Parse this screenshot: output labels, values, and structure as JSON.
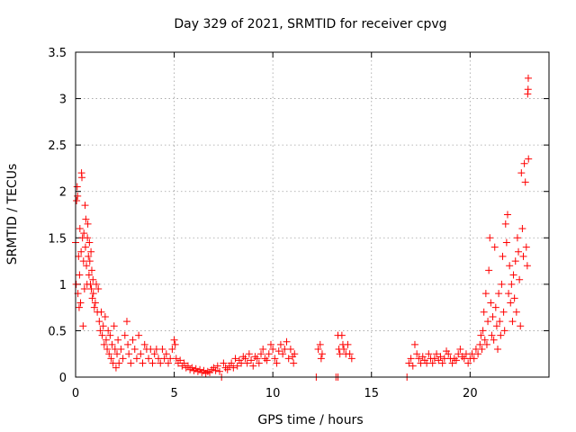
{
  "chart_data": {
    "type": "scatter",
    "title": "Day 329 of 2021, SRMTID for receiver cpvg",
    "xlabel": "GPS time / hours",
    "ylabel": "SRMTID / TECUs",
    "xlim": [
      0,
      24
    ],
    "ylim": [
      0,
      3.5
    ],
    "xticks": [
      0,
      5,
      10,
      15,
      20
    ],
    "xtick_labels": [
      "0",
      "5",
      "10",
      "15",
      "20"
    ],
    "yticks": [
      0,
      0.5,
      1,
      1.5,
      2,
      2.5,
      3,
      3.5
    ],
    "ytick_labels": [
      "0",
      "0.5",
      "1",
      "1.5",
      "2",
      "2.5",
      "3",
      "3.5"
    ],
    "grid": true,
    "marker": "+",
    "color": "#ff0000",
    "series": [
      {
        "name": "SRMTID",
        "points": [
          [
            0.0,
            1.45
          ],
          [
            0.03,
            1.0
          ],
          [
            0.05,
            1.9
          ],
          [
            0.08,
            2.05
          ],
          [
            0.1,
            1.95
          ],
          [
            0.12,
            0.9
          ],
          [
            0.15,
            1.3
          ],
          [
            0.18,
            0.75
          ],
          [
            0.2,
            1.1
          ],
          [
            0.22,
            1.6
          ],
          [
            0.25,
            0.8
          ],
          [
            0.28,
            1.35
          ],
          [
            0.3,
            2.2
          ],
          [
            0.32,
            2.15
          ],
          [
            0.35,
            1.5
          ],
          [
            0.38,
            0.55
          ],
          [
            0.4,
            1.25
          ],
          [
            0.42,
            1.55
          ],
          [
            0.45,
            0.95
          ],
          [
            0.48,
            1.85
          ],
          [
            0.5,
            1.4
          ],
          [
            0.52,
            1.7
          ],
          [
            0.55,
            1.2
          ],
          [
            0.58,
            1.0
          ],
          [
            0.6,
            1.5
          ],
          [
            0.62,
            1.65
          ],
          [
            0.65,
            1.3
          ],
          [
            0.68,
            1.1
          ],
          [
            0.7,
            1.45
          ],
          [
            0.72,
            1.25
          ],
          [
            0.75,
            1.0
          ],
          [
            0.78,
            1.35
          ],
          [
            0.8,
            0.95
          ],
          [
            0.82,
            1.15
          ],
          [
            0.85,
            0.85
          ],
          [
            0.88,
            1.05
          ],
          [
            0.9,
            0.9
          ],
          [
            0.95,
            0.75
          ],
          [
            1.0,
            0.8
          ],
          [
            1.05,
            1.0
          ],
          [
            1.1,
            0.7
          ],
          [
            1.15,
            0.95
          ],
          [
            1.2,
            0.6
          ],
          [
            1.25,
            0.5
          ],
          [
            1.3,
            0.7
          ],
          [
            1.35,
            0.45
          ],
          [
            1.4,
            0.55
          ],
          [
            1.45,
            0.35
          ],
          [
            1.5,
            0.65
          ],
          [
            1.55,
            0.4
          ],
          [
            1.6,
            0.3
          ],
          [
            1.65,
            0.5
          ],
          [
            1.7,
            0.25
          ],
          [
            1.75,
            0.45
          ],
          [
            1.8,
            0.2
          ],
          [
            1.85,
            0.35
          ],
          [
            1.9,
            0.15
          ],
          [
            1.95,
            0.55
          ],
          [
            2.0,
            0.3
          ],
          [
            2.05,
            0.1
          ],
          [
            2.1,
            0.25
          ],
          [
            2.15,
            0.4
          ],
          [
            2.2,
            0.15
          ],
          [
            2.3,
            0.3
          ],
          [
            2.4,
            0.2
          ],
          [
            2.5,
            0.45
          ],
          [
            2.6,
            0.6
          ],
          [
            2.65,
            0.35
          ],
          [
            2.7,
            0.25
          ],
          [
            2.8,
            0.15
          ],
          [
            2.9,
            0.4
          ],
          [
            3.0,
            0.3
          ],
          [
            3.1,
            0.2
          ],
          [
            3.2,
            0.45
          ],
          [
            3.3,
            0.25
          ],
          [
            3.4,
            0.15
          ],
          [
            3.5,
            0.35
          ],
          [
            3.6,
            0.3
          ],
          [
            3.7,
            0.2
          ],
          [
            3.8,
            0.3
          ],
          [
            3.9,
            0.15
          ],
          [
            4.0,
            0.25
          ],
          [
            4.1,
            0.3
          ],
          [
            4.2,
            0.2
          ],
          [
            4.3,
            0.15
          ],
          [
            4.4,
            0.3
          ],
          [
            4.5,
            0.2
          ],
          [
            4.6,
            0.25
          ],
          [
            4.7,
            0.15
          ],
          [
            4.8,
            0.2
          ],
          [
            4.9,
            0.3
          ],
          [
            5.0,
            0.4
          ],
          [
            5.05,
            0.35
          ],
          [
            5.1,
            0.2
          ],
          [
            5.2,
            0.15
          ],
          [
            5.3,
            0.18
          ],
          [
            5.4,
            0.12
          ],
          [
            5.5,
            0.15
          ],
          [
            5.6,
            0.1
          ],
          [
            5.7,
            0.12
          ],
          [
            5.8,
            0.08
          ],
          [
            5.9,
            0.1
          ],
          [
            6.0,
            0.07
          ],
          [
            6.1,
            0.09
          ],
          [
            6.2,
            0.06
          ],
          [
            6.3,
            0.08
          ],
          [
            6.4,
            0.05
          ],
          [
            6.5,
            0.07
          ],
          [
            6.6,
            0.04
          ],
          [
            6.7,
            0.06
          ],
          [
            6.8,
            0.05
          ],
          [
            6.9,
            0.08
          ],
          [
            7.0,
            0.1
          ],
          [
            7.1,
            0.07
          ],
          [
            7.2,
            0.12
          ],
          [
            7.3,
            0.06
          ],
          [
            7.4,
            0.0
          ],
          [
            7.5,
            0.15
          ],
          [
            7.6,
            0.1
          ],
          [
            7.7,
            0.08
          ],
          [
            7.8,
            0.12
          ],
          [
            7.9,
            0.15
          ],
          [
            8.0,
            0.1
          ],
          [
            8.1,
            0.2
          ],
          [
            8.2,
            0.12
          ],
          [
            8.3,
            0.18
          ],
          [
            8.4,
            0.15
          ],
          [
            8.5,
            0.22
          ],
          [
            8.6,
            0.2
          ],
          [
            8.7,
            0.15
          ],
          [
            8.8,
            0.25
          ],
          [
            8.9,
            0.18
          ],
          [
            9.0,
            0.12
          ],
          [
            9.1,
            0.22
          ],
          [
            9.2,
            0.2
          ],
          [
            9.3,
            0.15
          ],
          [
            9.4,
            0.25
          ],
          [
            9.5,
            0.3
          ],
          [
            9.6,
            0.2
          ],
          [
            9.7,
            0.18
          ],
          [
            9.8,
            0.25
          ],
          [
            9.9,
            0.35
          ],
          [
            10.0,
            0.3
          ],
          [
            10.1,
            0.2
          ],
          [
            10.2,
            0.15
          ],
          [
            10.3,
            0.28
          ],
          [
            10.4,
            0.35
          ],
          [
            10.5,
            0.25
          ],
          [
            10.6,
            0.3
          ],
          [
            10.7,
            0.38
          ],
          [
            10.8,
            0.2
          ],
          [
            10.9,
            0.3
          ],
          [
            11.0,
            0.22
          ],
          [
            11.05,
            0.15
          ],
          [
            11.1,
            0.25
          ],
          [
            12.2,
            0.0
          ],
          [
            12.3,
            0.3
          ],
          [
            12.4,
            0.35
          ],
          [
            12.45,
            0.2
          ],
          [
            12.5,
            0.25
          ],
          [
            13.2,
            0.0
          ],
          [
            13.3,
            0.0
          ],
          [
            13.3,
            0.45
          ],
          [
            13.35,
            0.3
          ],
          [
            13.4,
            0.25
          ],
          [
            13.5,
            0.45
          ],
          [
            13.55,
            0.35
          ],
          [
            13.6,
            0.3
          ],
          [
            13.7,
            0.25
          ],
          [
            13.8,
            0.35
          ],
          [
            13.9,
            0.25
          ],
          [
            14.0,
            0.2
          ],
          [
            16.8,
            0.0
          ],
          [
            16.9,
            0.15
          ],
          [
            17.0,
            0.2
          ],
          [
            17.1,
            0.12
          ],
          [
            17.2,
            0.35
          ],
          [
            17.3,
            0.25
          ],
          [
            17.4,
            0.2
          ],
          [
            17.5,
            0.15
          ],
          [
            17.6,
            0.22
          ],
          [
            17.7,
            0.18
          ],
          [
            17.8,
            0.15
          ],
          [
            17.9,
            0.25
          ],
          [
            18.0,
            0.2
          ],
          [
            18.1,
            0.15
          ],
          [
            18.2,
            0.2
          ],
          [
            18.3,
            0.25
          ],
          [
            18.4,
            0.18
          ],
          [
            18.5,
            0.22
          ],
          [
            18.6,
            0.15
          ],
          [
            18.7,
            0.2
          ],
          [
            18.8,
            0.28
          ],
          [
            18.9,
            0.25
          ],
          [
            19.0,
            0.2
          ],
          [
            19.1,
            0.15
          ],
          [
            19.2,
            0.2
          ],
          [
            19.3,
            0.18
          ],
          [
            19.4,
            0.25
          ],
          [
            19.5,
            0.3
          ],
          [
            19.6,
            0.22
          ],
          [
            19.7,
            0.2
          ],
          [
            19.8,
            0.25
          ],
          [
            19.9,
            0.15
          ],
          [
            20.0,
            0.2
          ],
          [
            20.1,
            0.25
          ],
          [
            20.2,
            0.2
          ],
          [
            20.3,
            0.3
          ],
          [
            20.4,
            0.25
          ],
          [
            20.5,
            0.35
          ],
          [
            20.55,
            0.45
          ],
          [
            20.6,
            0.3
          ],
          [
            20.65,
            0.5
          ],
          [
            20.7,
            0.7
          ],
          [
            20.75,
            0.4
          ],
          [
            20.8,
            0.9
          ],
          [
            20.85,
            0.35
          ],
          [
            20.9,
            0.6
          ],
          [
            20.95,
            1.15
          ],
          [
            21.0,
            1.5
          ],
          [
            21.05,
            0.8
          ],
          [
            21.1,
            0.45
          ],
          [
            21.15,
            0.65
          ],
          [
            21.2,
            0.4
          ],
          [
            21.25,
            1.4
          ],
          [
            21.3,
            0.75
          ],
          [
            21.35,
            0.55
          ],
          [
            21.4,
            0.3
          ],
          [
            21.45,
            0.9
          ],
          [
            21.5,
            0.6
          ],
          [
            21.55,
            0.45
          ],
          [
            21.6,
            1.0
          ],
          [
            21.65,
            1.3
          ],
          [
            21.7,
            0.7
          ],
          [
            21.75,
            0.5
          ],
          [
            21.8,
            1.65
          ],
          [
            21.85,
            1.45
          ],
          [
            21.9,
            1.75
          ],
          [
            21.95,
            0.9
          ],
          [
            22.0,
            1.2
          ],
          [
            22.05,
            0.8
          ],
          [
            22.1,
            1.0
          ],
          [
            22.15,
            0.6
          ],
          [
            22.2,
            1.1
          ],
          [
            22.25,
            0.85
          ],
          [
            22.3,
            1.25
          ],
          [
            22.35,
            0.7
          ],
          [
            22.4,
            1.5
          ],
          [
            22.45,
            1.35
          ],
          [
            22.5,
            1.05
          ],
          [
            22.55,
            0.55
          ],
          [
            22.6,
            2.2
          ],
          [
            22.65,
            1.6
          ],
          [
            22.7,
            1.3
          ],
          [
            22.75,
            2.3
          ],
          [
            22.8,
            2.1
          ],
          [
            22.85,
            1.4
          ],
          [
            22.9,
            1.2
          ],
          [
            22.92,
            3.05
          ],
          [
            22.94,
            3.1
          ],
          [
            22.95,
            3.22
          ],
          [
            22.96,
            2.35
          ]
        ]
      }
    ]
  }
}
